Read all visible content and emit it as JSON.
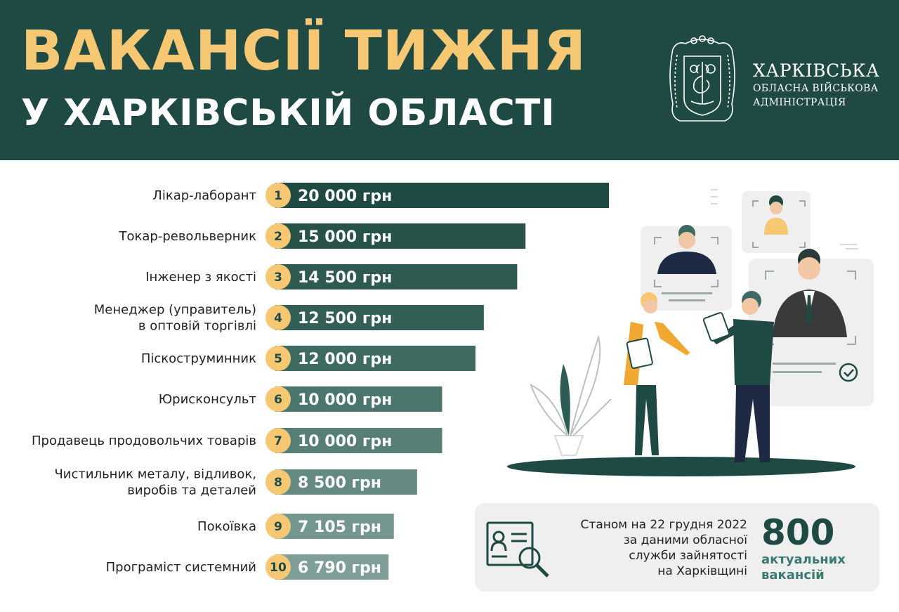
{
  "header": {
    "title_line1": "ВАКАНСІЇ ТИЖНЯ",
    "title_line2": "У ХАРКІВСЬКІЙ ОБЛАСТІ",
    "org_line1": "ХАРКІВСЬКА",
    "org_line2": "ОБЛАСНА ВІЙСЬКОВА",
    "org_line3": "АДМІНІСТРАЦІЯ",
    "emblem_icon": "coat-of-arms-icon"
  },
  "colors": {
    "header_bg": "#1f4a44",
    "title_accent": "#f7c873",
    "rank_circle": "#f7c873",
    "bar_colors": [
      "#1f4a44",
      "#275249",
      "#2e5a51",
      "#345f56",
      "#3d6b61",
      "#4b766d",
      "#587f77",
      "#658a82",
      "#73968e",
      "#7e9e97"
    ],
    "info_bg": "#eeefee",
    "count_color": "#1f4a44"
  },
  "chart_data": {
    "type": "bar",
    "orientation": "horizontal",
    "categories": [
      "Лікар-лаборант",
      "Токар-револьверник",
      "Інженер з якості",
      "Менеджер (управитель)\nв оптовій торгівлі",
      "Піскоструминник",
      "Юрисконсульт",
      "Продавець продовольчих товарів",
      "Чистильник металу, відливок,\nвиробів та деталей",
      "Покоївка",
      "Програміст системний"
    ],
    "ranks": [
      "1",
      "2",
      "3",
      "4",
      "5",
      "6",
      "7",
      "8",
      "9",
      "10"
    ],
    "values": [
      20000,
      15000,
      14500,
      12500,
      12000,
      10000,
      10000,
      8500,
      7105,
      6790
    ],
    "value_labels": [
      "20 000 грн",
      "15 000 грн",
      "14 500 грн",
      "12 500 грн",
      "12 000 грн",
      "10 000 грн",
      "10 000 грн",
      "8 500 грн",
      "7 105 грн",
      "6 790 грн"
    ],
    "unit": "грн",
    "xlim": [
      0,
      20000
    ],
    "grid": false
  },
  "info": {
    "text_lines": [
      "Станом на 22 грудня 2022",
      "за даними обласної",
      "служби зайнятості",
      "на Харківщині"
    ],
    "count": "800",
    "count_label_line1": "актуальних",
    "count_label_line2": "вакансій",
    "icon": "document-search-icon"
  },
  "illustration": {
    "icons": [
      "profile-card-icon",
      "checkmark-icon",
      "plant-icon",
      "recruiters-icon"
    ]
  }
}
